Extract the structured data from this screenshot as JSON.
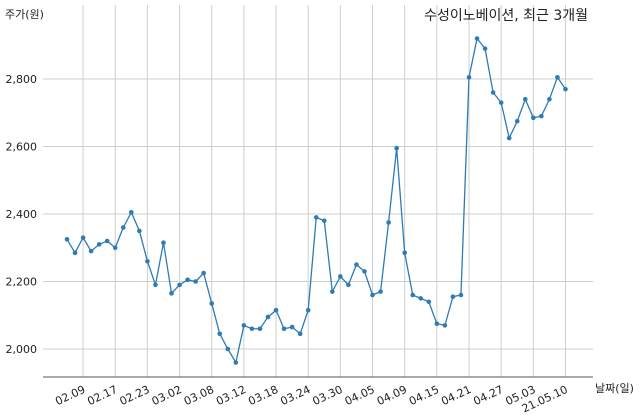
{
  "chart_data": {
    "type": "line",
    "title": "수성이노베이션, 최근 3개월",
    "ylabel": "주가(원)",
    "xlabel": "날짜(일)",
    "ylim": [
      1910,
      2950
    ],
    "yticks": [
      2000,
      2200,
      2400,
      2600,
      2800
    ],
    "ytick_labels": [
      "2,000",
      "2,200",
      "2,400",
      "2,600",
      "2,800"
    ],
    "xtick_labels": [
      "02.09",
      "02.17",
      "02.23",
      "03.02",
      "03.08",
      "03.12",
      "03.18",
      "03.24",
      "03.30",
      "04.05",
      "04.09",
      "04.15",
      "04.21",
      "04.27",
      "05.03",
      "21.05.10"
    ],
    "xtick_index": [
      2,
      6,
      10,
      14,
      18,
      22,
      26,
      30,
      34,
      38,
      42,
      46,
      50,
      54,
      58,
      62
    ],
    "grid": true,
    "color": "#2e7bb5",
    "series": [
      {
        "values": [
          2325,
          2285,
          2330,
          2290,
          2310,
          2320,
          2300,
          2360,
          2405,
          2350,
          2260,
          2190,
          2315,
          2165,
          2190,
          2205,
          2200,
          2225,
          2135,
          2045,
          2000,
          1960,
          2070,
          2060,
          2060,
          2095,
          2115,
          2060,
          2065,
          2045,
          2115,
          2390,
          2380,
          2170,
          2215,
          2190,
          2250,
          2230,
          2160,
          2170,
          2375,
          2595,
          2285,
          2160,
          2150,
          2140,
          2075,
          2070,
          2155,
          2160,
          2805,
          2920,
          2890,
          2760,
          2730,
          2625,
          2675,
          2740,
          2685,
          2690,
          2740,
          2805,
          2770
        ]
      }
    ]
  }
}
